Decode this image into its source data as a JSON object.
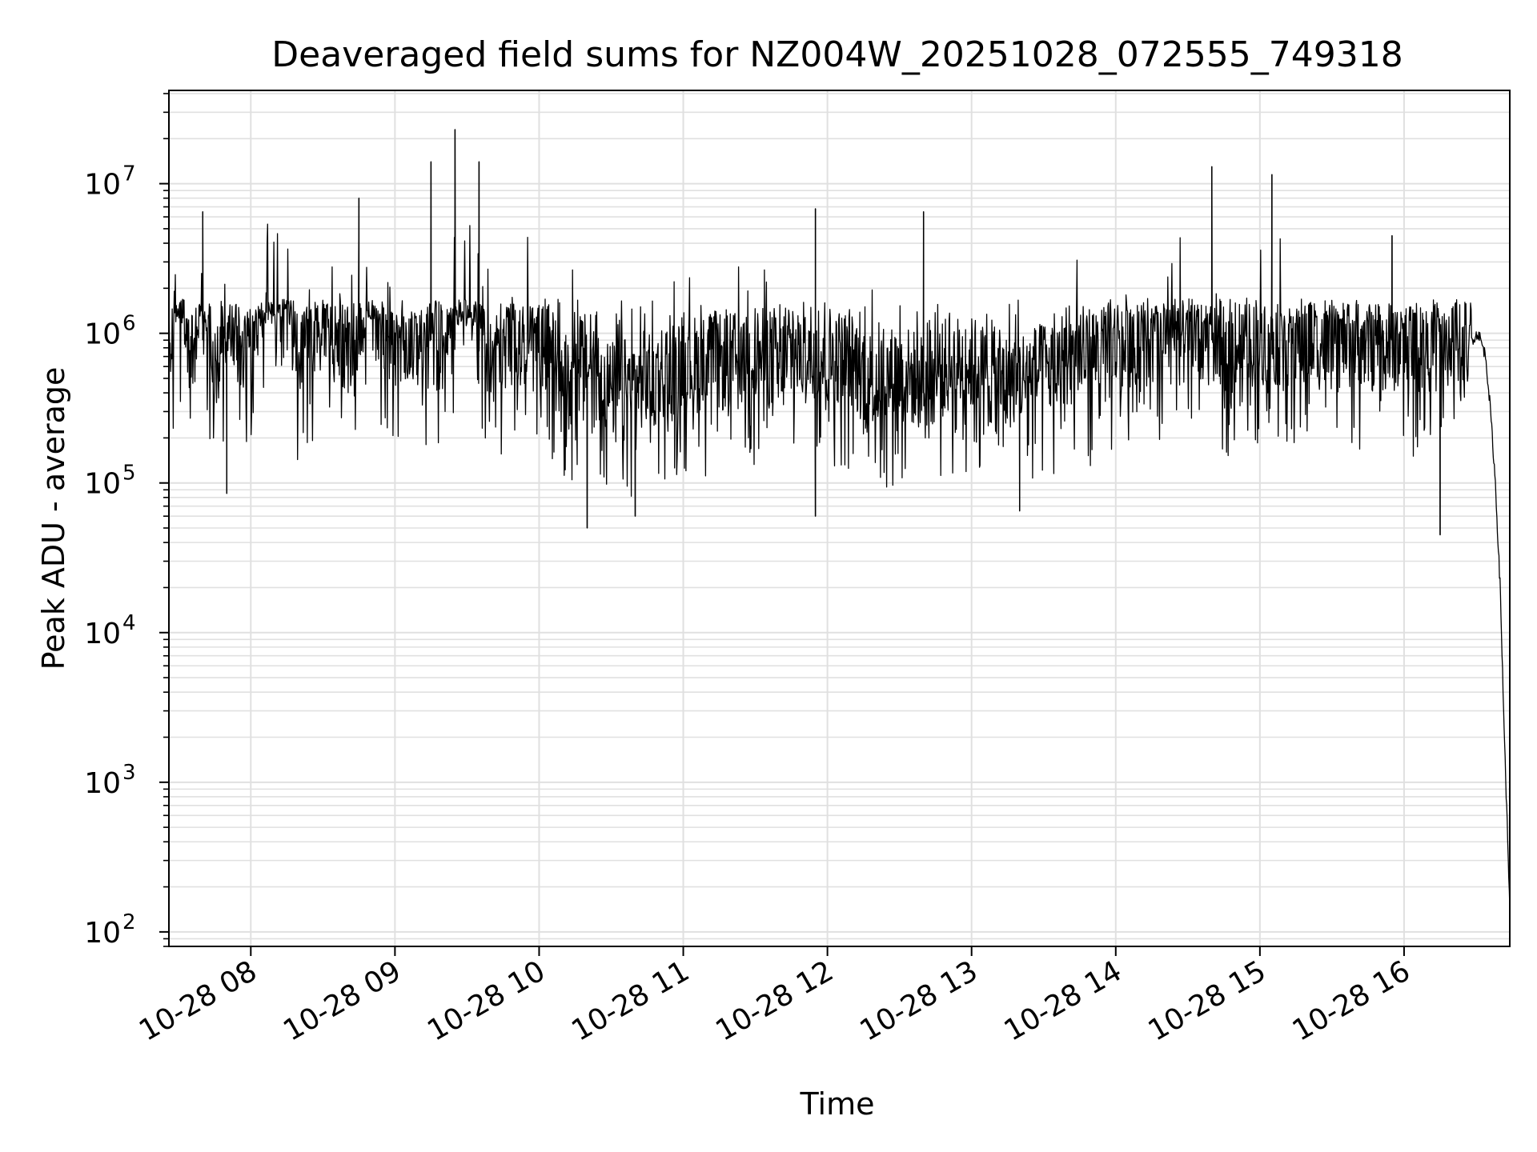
{
  "chart_data": {
    "type": "line",
    "title": "Deaveraged field sums for NZ004W_20251028_072555_749318",
    "xlabel": "Time",
    "ylabel": "Peak ADU - average",
    "y_scale": "log",
    "ylim": [
      80,
      42000000
    ],
    "xlim": [
      "2025-10-28 07:25:55",
      "2025-10-28 16:44:00"
    ],
    "grid": true,
    "legend": "none",
    "colors": {
      "line": "#000000",
      "grid": "#e0e0e0",
      "axes": "#000000"
    },
    "x_ticks": [
      {
        "t": "2025-10-28 08:00",
        "label": "10-28 08"
      },
      {
        "t": "2025-10-28 09:00",
        "label": "10-28 09"
      },
      {
        "t": "2025-10-28 10:00",
        "label": "10-28 10"
      },
      {
        "t": "2025-10-28 11:00",
        "label": "10-28 11"
      },
      {
        "t": "2025-10-28 12:00",
        "label": "10-28 12"
      },
      {
        "t": "2025-10-28 13:00",
        "label": "10-28 13"
      },
      {
        "t": "2025-10-28 14:00",
        "label": "10-28 14"
      },
      {
        "t": "2025-10-28 15:00",
        "label": "10-28 15"
      },
      {
        "t": "2025-10-28 16:00",
        "label": "10-28 16"
      }
    ],
    "y_ticks": [
      {
        "value": 100,
        "base": "10",
        "exp": "2"
      },
      {
        "value": 1000,
        "base": "10",
        "exp": "3"
      },
      {
        "value": 10000,
        "base": "10",
        "exp": "4"
      },
      {
        "value": 100000,
        "base": "10",
        "exp": "5"
      },
      {
        "value": 1000000,
        "base": "10",
        "exp": "6"
      },
      {
        "value": 10000000,
        "base": "10",
        "exp": "7"
      }
    ],
    "series": [
      {
        "x": [
          "2025-10-28 07:26",
          "2025-10-28 07:30",
          "2025-10-28 07:35",
          "2025-10-28 07:40",
          "2025-10-28 07:45",
          "2025-10-28 07:50",
          "2025-10-28 07:55",
          "2025-10-28 08:00",
          "2025-10-28 08:10",
          "2025-10-28 08:20",
          "2025-10-28 08:30",
          "2025-10-28 08:40",
          "2025-10-28 08:50",
          "2025-10-28 09:00",
          "2025-10-28 09:10",
          "2025-10-28 09:20",
          "2025-10-28 09:30",
          "2025-10-28 09:40",
          "2025-10-28 09:50",
          "2025-10-28 10:00",
          "2025-10-28 10:10",
          "2025-10-28 10:20",
          "2025-10-28 10:30",
          "2025-10-28 10:40",
          "2025-10-28 10:50",
          "2025-10-28 11:00",
          "2025-10-28 11:10",
          "2025-10-28 11:20",
          "2025-10-28 11:30",
          "2025-10-28 11:40",
          "2025-10-28 11:50",
          "2025-10-28 12:00",
          "2025-10-28 12:10",
          "2025-10-28 12:20",
          "2025-10-28 12:30",
          "2025-10-28 12:40",
          "2025-10-28 12:50",
          "2025-10-28 13:00",
          "2025-10-28 13:10",
          "2025-10-28 13:20",
          "2025-10-28 13:30",
          "2025-10-28 13:40",
          "2025-10-28 13:50",
          "2025-10-28 14:00",
          "2025-10-28 14:10",
          "2025-10-28 14:20",
          "2025-10-28 14:30",
          "2025-10-28 14:40",
          "2025-10-28 14:50",
          "2025-10-28 15:00",
          "2025-10-28 15:10",
          "2025-10-28 15:20",
          "2025-10-28 15:30",
          "2025-10-28 15:40",
          "2025-10-28 15:50",
          "2025-10-28 16:00",
          "2025-10-28 16:05",
          "2025-10-28 16:10",
          "2025-10-28 16:15",
          "2025-10-28 16:20",
          "2025-10-28 16:25",
          "2025-10-28 16:28",
          "2025-10-28 16:31",
          "2025-10-28 16:34",
          "2025-10-28 16:36",
          "2025-10-28 16:38",
          "2025-10-28 16:40",
          "2025-10-28 16:42",
          "2025-10-28 16:44"
        ],
        "y": [
          700000,
          2500000,
          800000,
          3000000,
          600000,
          1500000,
          900000,
          1200000,
          2500000,
          800000,
          1500000,
          900000,
          1800000,
          1000000,
          1100000,
          900000,
          4000000,
          700000,
          1100000,
          1000000,
          600000,
          700000,
          450000,
          500000,
          600000,
          700000,
          650000,
          700000,
          800000,
          650000,
          900000,
          800000,
          700000,
          500000,
          600000,
          500000,
          650000,
          700000,
          500000,
          550000,
          600000,
          700000,
          800000,
          900000,
          1000000,
          1000000,
          1100000,
          1000000,
          900000,
          1050000,
          1000000,
          950000,
          950000,
          1000000,
          900000,
          950000,
          900000,
          950000,
          900000,
          1000000,
          1000000,
          900000,
          1000000,
          700000,
          300000,
          100000,
          20000,
          1500,
          150
        ],
        "spikes": [
          {
            "t": "2025-10-28 07:40",
            "value": 6500000
          },
          {
            "t": "2025-10-28 08:45",
            "value": 8000000
          },
          {
            "t": "2025-10-28 09:15",
            "value": 14000000
          },
          {
            "t": "2025-10-28 09:25",
            "value": 23000000
          },
          {
            "t": "2025-10-28 09:35",
            "value": 14000000
          },
          {
            "t": "2025-10-28 11:55",
            "value": 6800000
          },
          {
            "t": "2025-10-28 12:40",
            "value": 6500000
          },
          {
            "t": "2025-10-28 14:40",
            "value": 13000000
          },
          {
            "t": "2025-10-28 15:05",
            "value": 11500000
          },
          {
            "t": "2025-10-28 15:55",
            "value": 4500000
          }
        ],
        "dips": [
          {
            "t": "2025-10-28 07:50",
            "value": 85000
          },
          {
            "t": "2025-10-28 10:20",
            "value": 50000
          },
          {
            "t": "2025-10-28 10:40",
            "value": 60000
          },
          {
            "t": "2025-10-28 11:55",
            "value": 60000
          },
          {
            "t": "2025-10-28 13:20",
            "value": 65000
          },
          {
            "t": "2025-10-28 16:15",
            "value": 45000
          }
        ]
      }
    ]
  }
}
